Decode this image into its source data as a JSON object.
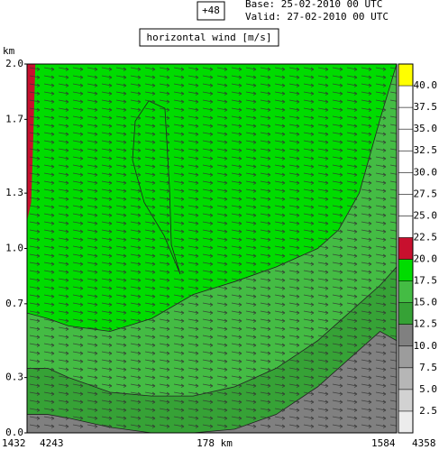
{
  "chart_data": {
    "type": "contourf",
    "title": "horizontal wind [m/s]",
    "forecast": "+48",
    "base": "Base: 25-02-2010  00 UTC",
    "valid": "Valid: 27-02-2010  00 UTC",
    "ylabel": "km",
    "xlabel": "178 km",
    "x_labels": [
      "1432",
      "4243",
      "1584",
      "4358"
    ],
    "xlim": [
      0,
      178
    ],
    "ylim": [
      0,
      2
    ],
    "yticks": [
      {
        "value": 0,
        "label": "0.0"
      },
      0.3,
      0.7,
      {
        "value": 1,
        "label": "1.0"
      },
      1.3,
      1.7,
      {
        "value": 2,
        "label": "2.0"
      }
    ],
    "x": [
      0,
      10,
      20,
      40,
      60,
      80,
      100,
      120,
      140,
      150,
      160,
      170,
      178
    ],
    "bands": [
      {
        "level": 15,
        "values": [
          0.65,
          0.62,
          0.58,
          0.55,
          0.62,
          0.75,
          0.82,
          0.9,
          1.0,
          1.1,
          1.3,
          1.7,
          2.0
        ]
      },
      {
        "level": 12.5,
        "values": [
          0.35,
          0.35,
          0.3,
          0.22,
          0.2,
          0.2,
          0.25,
          0.35,
          0.5,
          0.6,
          0.7,
          0.8,
          0.9
        ]
      },
      {
        "level": 10,
        "values": [
          0.1,
          0.1,
          0.08,
          0.03,
          0.0,
          0.0,
          0.02,
          0.1,
          0.25,
          0.35,
          0.45,
          0.55,
          0.5
        ]
      }
    ],
    "background_level": 17.5,
    "regions": [
      {
        "level": 20,
        "x": [
          0,
          4,
          3,
          2,
          0
        ],
        "y": [
          2,
          2,
          1.6,
          1.25,
          1.15
        ]
      }
    ],
    "contour_lines": [
      {
        "x": [
          58.6,
          66.4,
          68.6,
          69.5,
          73.8,
          66.0,
          56.4,
          50.8,
          52.1,
          58.6
        ],
        "y": [
          1.8,
          1.76,
          1.33,
          1.02,
          0.86,
          1.07,
          1.25,
          1.48,
          1.69,
          1.8
        ]
      }
    ],
    "colorbar": {
      "lim": [
        0,
        42.5
      ],
      "ticks": [
        2.5,
        {
          "value": 5,
          "label": "5.0"
        },
        7.5,
        {
          "value": 10,
          "label": "10.0"
        },
        12.5,
        {
          "value": 15,
          "label": "15.0"
        },
        17.5,
        {
          "value": 20,
          "label": "20.0"
        },
        22.5,
        {
          "value": 25,
          "label": "25.0"
        },
        27.5,
        {
          "value": 30,
          "label": "30.0"
        },
        32.5,
        {
          "value": 35,
          "label": "35.0"
        },
        37.5,
        {
          "value": 40,
          "label": "40.0"
        }
      ],
      "colors": [
        "#ececec",
        "#d2d2d2",
        "#b6b6b6",
        "#9c9c9c",
        "#808080",
        "#36a236",
        "#44bc44",
        "#00dc00",
        "#c8102e",
        "#ffffff",
        "#ffffff",
        "#ffffff",
        "#ffffff",
        "#ffffff",
        "#ffffff",
        "#ffffff",
        "#ffff00"
      ]
    }
  }
}
